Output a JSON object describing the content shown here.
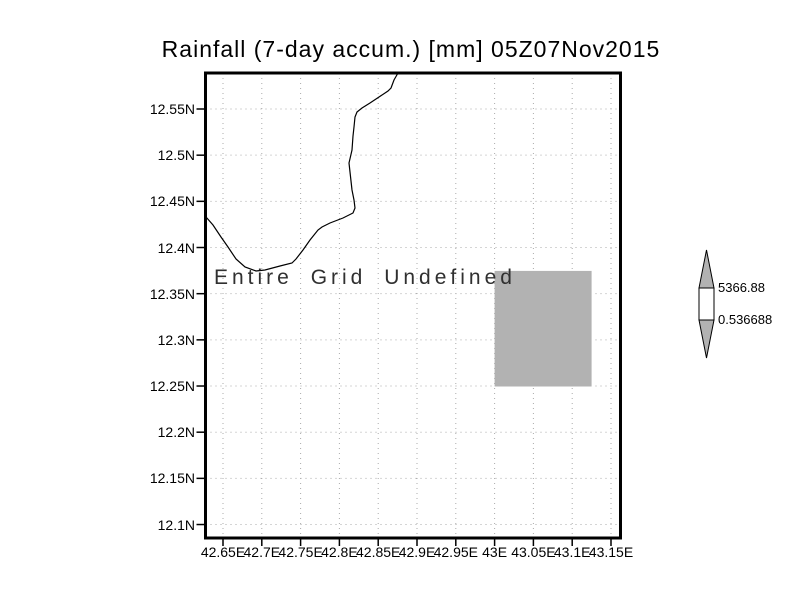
{
  "title": "Rainfall (7-day accum.) [mm] 05Z07Nov2015",
  "annotation": "Entire Grid Undefined",
  "axes": {
    "y_ticks": [
      "12.55N",
      "12.5N",
      "12.45N",
      "12.4N",
      "12.35N",
      "12.3N",
      "12.25N",
      "12.2N",
      "12.15N",
      "12.1N"
    ],
    "x_ticks": [
      "42.65E",
      "42.7E",
      "42.75E",
      "42.8E",
      "42.85E",
      "42.9E",
      "42.95E",
      "43E",
      "43.05E",
      "43.1E",
      "43.15E"
    ]
  },
  "colorbar": {
    "max_label": "5366.88",
    "min_label": "0.536688"
  },
  "colors": {
    "undefined_fill": "#b2b2b2",
    "colorbar_arrow_fill": "#b2b2b2",
    "grid": "#ababab",
    "coastline": "#000000",
    "border": "#000000",
    "annotation_text": "#303030"
  },
  "chart_data": {
    "type": "map",
    "title": "Rainfall (7-day accum.) [mm] 05Z07Nov2015",
    "variable": "Rainfall (7-day accum.)",
    "units": "mm",
    "valid_time": "05Z07Nov2015",
    "status": "Entire Grid Undefined",
    "lon_ticks": [
      42.65,
      42.7,
      42.75,
      42.8,
      42.85,
      42.9,
      42.95,
      43.0,
      43.05,
      43.1,
      43.15
    ],
    "lat_ticks": [
      12.55,
      12.5,
      12.45,
      12.4,
      12.35,
      12.3,
      12.25,
      12.2,
      12.15,
      12.1
    ],
    "grid_style": "dotted",
    "colorbar_range": [
      0.536688,
      5366.88
    ],
    "undefined_region_lon": [
      43.0,
      43.125
    ],
    "undefined_region_lat": [
      12.25,
      12.375
    ],
    "coastline_shown": true
  }
}
